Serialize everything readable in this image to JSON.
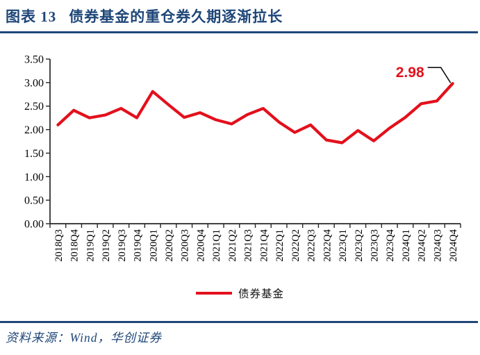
{
  "header": {
    "figure_label": "图表 13",
    "title": "债券基金的重仓券久期逐渐拉长"
  },
  "footer": {
    "source": "资料来源：Wind，华创证券"
  },
  "colors": {
    "navy": "#1E4678",
    "red": "#E3101C",
    "axis": "#262626",
    "label_text": "#000000"
  },
  "chart_data": {
    "type": "line",
    "categories": [
      "2018Q3",
      "2018Q4",
      "2019Q1",
      "2019Q2",
      "2019Q3",
      "2019Q4",
      "2020Q1",
      "2020Q2",
      "2020Q3",
      "2020Q4",
      "2021Q1",
      "2021Q2",
      "2021Q3",
      "2021Q4",
      "2022Q1",
      "2022Q2",
      "2022Q3",
      "2022Q4",
      "2023Q1",
      "2023Q2",
      "2023Q3",
      "2023Q4",
      "2024Q1",
      "2024Q2",
      "2024Q3",
      "2024Q4"
    ],
    "series": [
      {
        "name": "债券基金",
        "color": "#E3101C",
        "values": [
          2.1,
          2.41,
          2.25,
          2.31,
          2.45,
          2.25,
          2.81,
          2.53,
          2.26,
          2.36,
          2.21,
          2.12,
          2.32,
          2.45,
          2.16,
          1.94,
          2.1,
          1.78,
          1.72,
          1.98,
          1.76,
          2.03,
          2.26,
          2.55,
          2.61,
          2.98
        ]
      }
    ],
    "ylim": [
      0,
      3.5
    ],
    "yticks": [
      "0.00",
      "0.50",
      "1.00",
      "1.50",
      "2.00",
      "2.50",
      "3.00",
      "3.50"
    ],
    "xlabel": "",
    "ylabel": "",
    "grid": false,
    "legend_position": "bottom",
    "annotation": {
      "text": "2.98",
      "index": 25
    }
  }
}
